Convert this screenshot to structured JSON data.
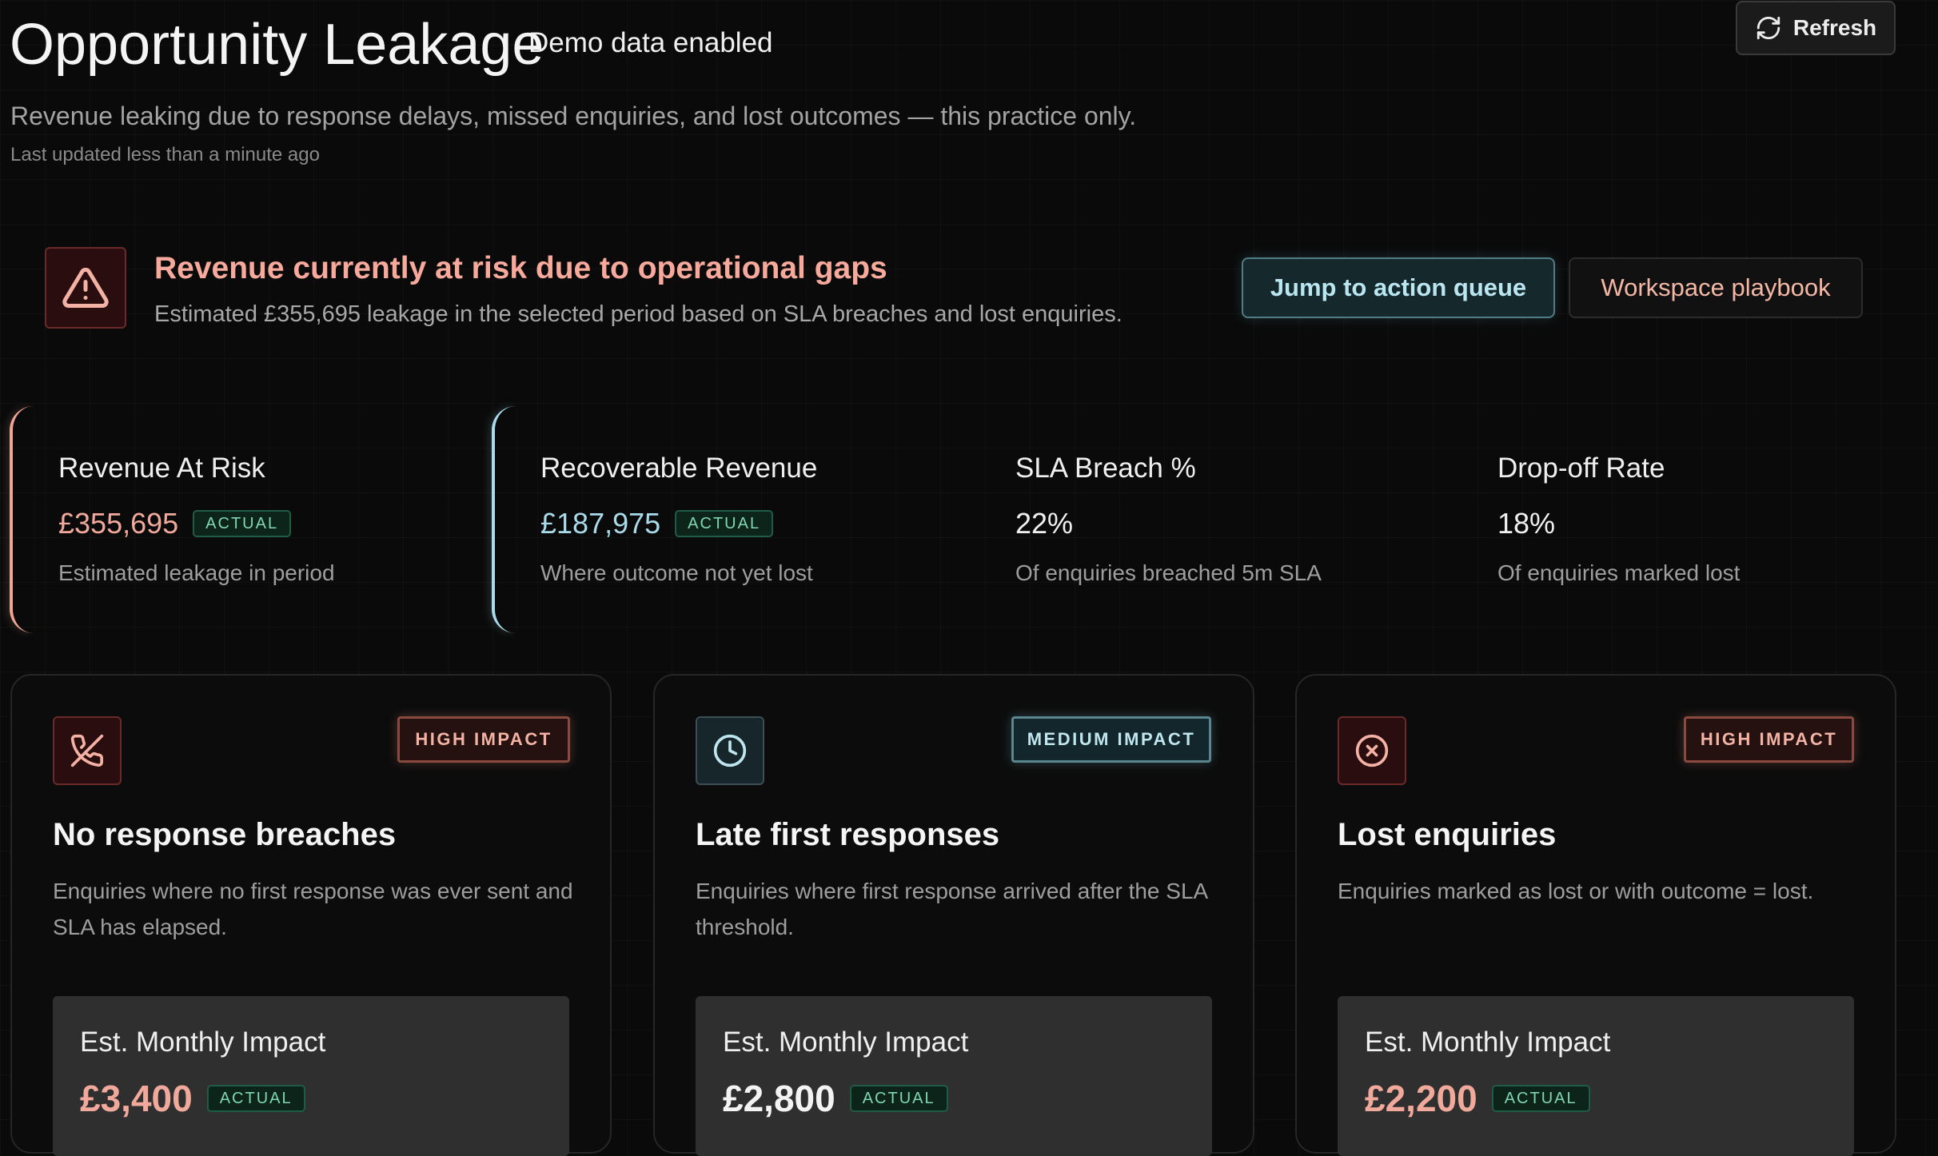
{
  "header": {
    "title": "Opportunity Leakage",
    "demo_badge": "Demo data enabled",
    "subtitle": "Revenue leaking due to response delays, missed enquiries, and lost outcomes — this practice only.",
    "last_updated": "Last updated less than a minute ago",
    "refresh_label": "Refresh",
    "refresh_icon": "refresh-icon"
  },
  "alert": {
    "icon": "warning-triangle-icon",
    "title": "Revenue currently at risk due to operational gaps",
    "description": "Estimated £355,695 leakage in the selected period based on SLA breaches and lost enquiries.",
    "primary_action": "Jump to action queue",
    "secondary_action": "Workspace playbook"
  },
  "kpis": [
    {
      "label": "Revenue At Risk",
      "value": "£355,695",
      "tag": "ACTUAL",
      "caption": "Estimated leakage in period",
      "accent": "#f1a595"
    },
    {
      "label": "Recoverable Revenue",
      "value": "£187,975",
      "tag": "ACTUAL",
      "caption": "Where outcome not yet lost",
      "accent": "#a8dcea"
    },
    {
      "label": "SLA Breach %",
      "value": "22%",
      "caption": "Of enquiries breached 5m SLA"
    },
    {
      "label": "Drop-off Rate",
      "value": "18%",
      "caption": "Of enquiries marked lost"
    }
  ],
  "cards": [
    {
      "icon": "phone-missed-icon",
      "impact": "HIGH IMPACT",
      "title": "No response breaches",
      "description": "Enquiries where no first response was ever sent and SLA has elapsed.",
      "monthly_label": "Est. Monthly Impact",
      "monthly_value": "£3,400",
      "tag": "ACTUAL"
    },
    {
      "icon": "clock-icon",
      "impact": "MEDIUM IMPACT",
      "title": "Late first responses",
      "description": "Enquiries where first response arrived after the SLA threshold.",
      "monthly_label": "Est. Monthly Impact",
      "monthly_value": "£2,800",
      "tag": "ACTUAL"
    },
    {
      "icon": "x-circle-icon",
      "impact": "HIGH IMPACT",
      "title": "Lost enquiries",
      "description": "Enquiries marked as lost or with outcome = lost.",
      "monthly_label": "Est. Monthly Impact",
      "monthly_value": "£2,200",
      "tag": "ACTUAL"
    }
  ],
  "colors": {
    "background": "#0a0a0a",
    "danger_accent": "#f1a99c",
    "info_accent": "#a9dbea",
    "actual_tag": "#7fd6b0"
  }
}
